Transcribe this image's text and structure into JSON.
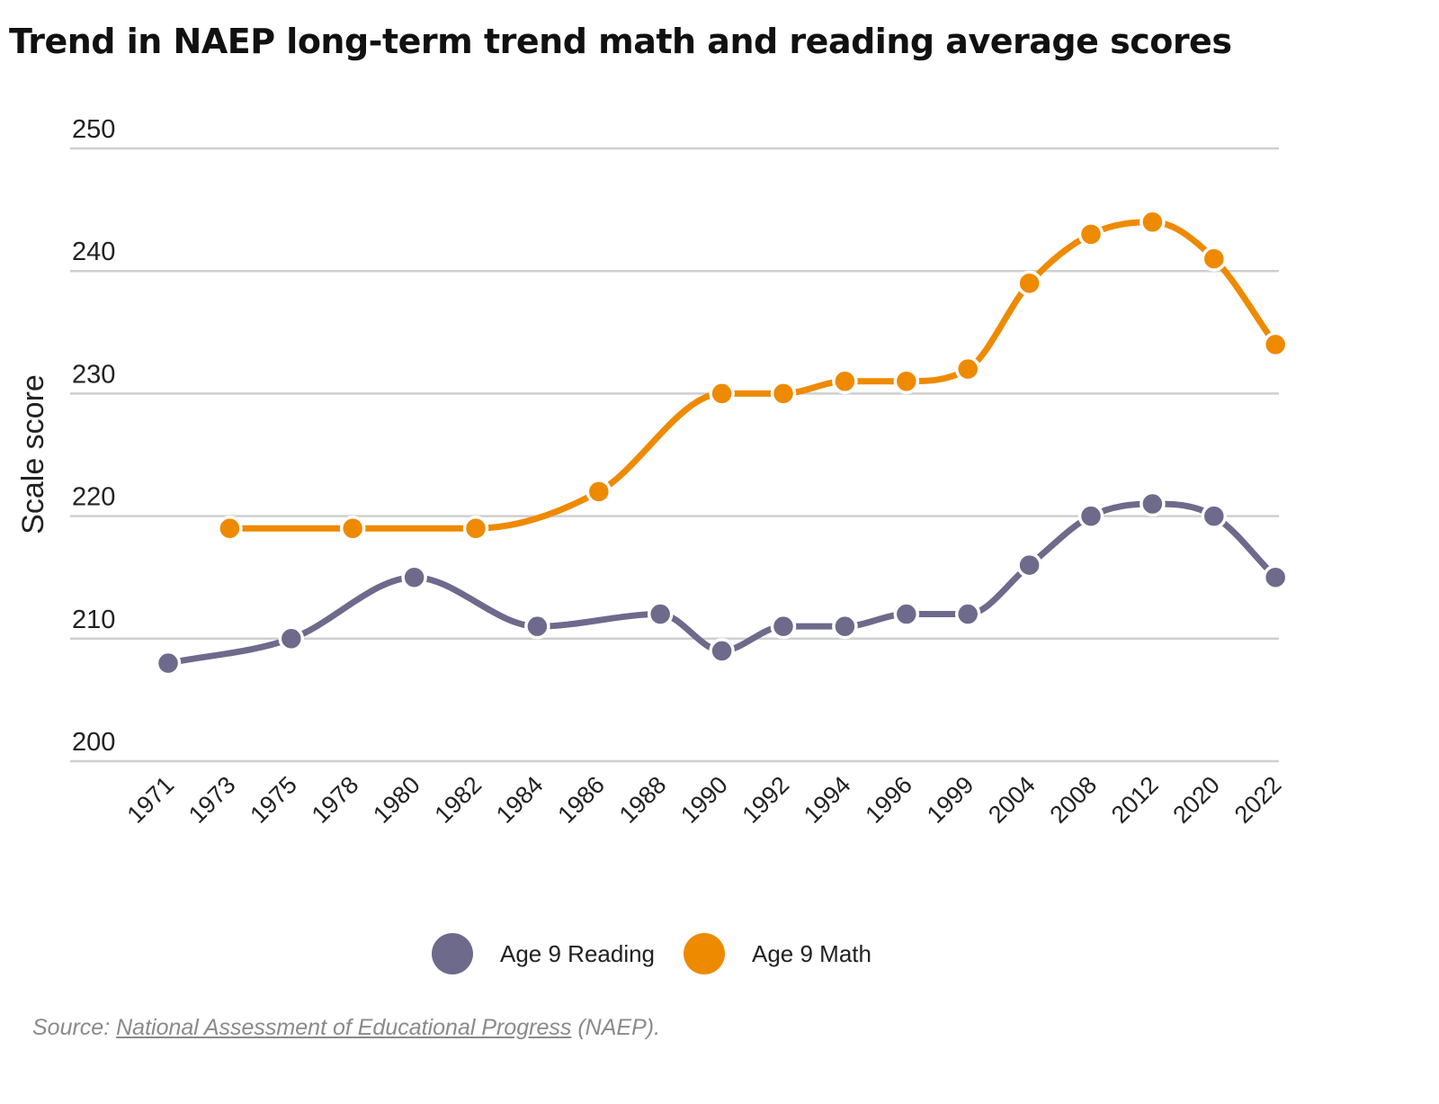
{
  "chart_data": {
    "type": "line",
    "title": "Trend in NAEP long-term trend math and reading average scores",
    "xlabel": "",
    "ylabel": "Scale score",
    "ylim": [
      200,
      250
    ],
    "yticks": [
      200,
      210,
      220,
      230,
      240,
      250
    ],
    "grid": true,
    "categories": [
      "1971",
      "1973",
      "1975",
      "1978",
      "1980",
      "1982",
      "1984",
      "1986",
      "1988",
      "1990",
      "1992",
      "1994",
      "1996",
      "1999",
      "2004",
      "2008",
      "2012",
      "2020",
      "2022"
    ],
    "series": [
      {
        "name": "Age 9 Reading",
        "color": "#6e6a8c",
        "values": [
          208,
          null,
          210,
          null,
          215,
          null,
          211,
          null,
          212,
          209,
          211,
          211,
          212,
          212,
          216,
          220,
          221,
          220,
          215
        ]
      },
      {
        "name": "Age 9 Math",
        "color": "#ee8a00",
        "values": [
          null,
          219,
          null,
          219,
          null,
          219,
          null,
          222,
          null,
          230,
          230,
          231,
          231,
          232,
          239,
          243,
          244,
          241,
          234
        ]
      }
    ],
    "legend_position": "bottom"
  },
  "source": {
    "prefix": "Source: ",
    "link_text": "National Assessment of Educational Progress",
    "suffix": " (NAEP)."
  }
}
